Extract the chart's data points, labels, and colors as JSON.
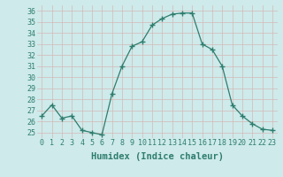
{
  "x": [
    0,
    1,
    2,
    3,
    4,
    5,
    6,
    7,
    8,
    9,
    10,
    11,
    12,
    13,
    14,
    15,
    16,
    17,
    18,
    19,
    20,
    21,
    22,
    23
  ],
  "y": [
    26.5,
    27.5,
    26.3,
    26.5,
    25.2,
    25.0,
    24.8,
    28.5,
    31.0,
    32.8,
    33.2,
    34.7,
    35.3,
    35.7,
    35.8,
    35.8,
    33.0,
    32.5,
    31.0,
    27.5,
    26.5,
    25.8,
    25.3,
    25.2
  ],
  "xlabel": "Humidex (Indice chaleur)",
  "xlim": [
    -0.5,
    23.5
  ],
  "ylim": [
    24.5,
    36.5
  ],
  "yticks": [
    25,
    26,
    27,
    28,
    29,
    30,
    31,
    32,
    33,
    34,
    35,
    36
  ],
  "xticks": [
    0,
    1,
    2,
    3,
    4,
    5,
    6,
    7,
    8,
    9,
    10,
    11,
    12,
    13,
    14,
    15,
    16,
    17,
    18,
    19,
    20,
    21,
    22,
    23
  ],
  "line_color": "#2e7d6e",
  "marker_color": "#2e7d6e",
  "bg_color": "#ceeaea",
  "grid_color": "#b8d8d8",
  "tick_color": "#2e7d6e",
  "label_color": "#2e7d6e",
  "tick_fontsize": 6.0,
  "xlabel_fontsize": 7.5
}
